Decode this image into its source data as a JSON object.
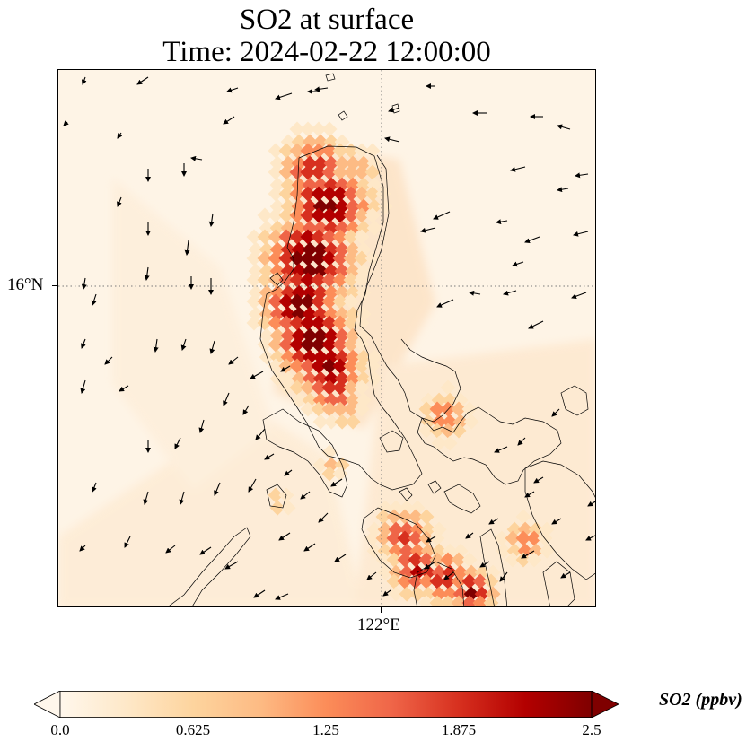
{
  "title": {
    "line1": "SO2 at surface",
    "line2": "Time: 2024-02-22 12:00:00"
  },
  "axes": {
    "lat_tick": "16°N",
    "lon_tick": "122°E",
    "gridline_style": "dotted"
  },
  "colorbar": {
    "label": "SO2 (ppbv)",
    "ticks": [
      "0.0",
      "0.625",
      "1.25",
      "1.875",
      "2.5"
    ],
    "min": 0,
    "max": 2.5,
    "extend": "both",
    "colormap": "OrRd",
    "colors": [
      "#fff7ec",
      "#fee8c8",
      "#fdd49e",
      "#fdbb84",
      "#fc8d59",
      "#ef6548",
      "#d7301f",
      "#b30000",
      "#7f0000"
    ]
  },
  "map": {
    "background": "#fef4e6",
    "coastline_color": "#000000",
    "wind_arrow_color": "#000000"
  }
}
